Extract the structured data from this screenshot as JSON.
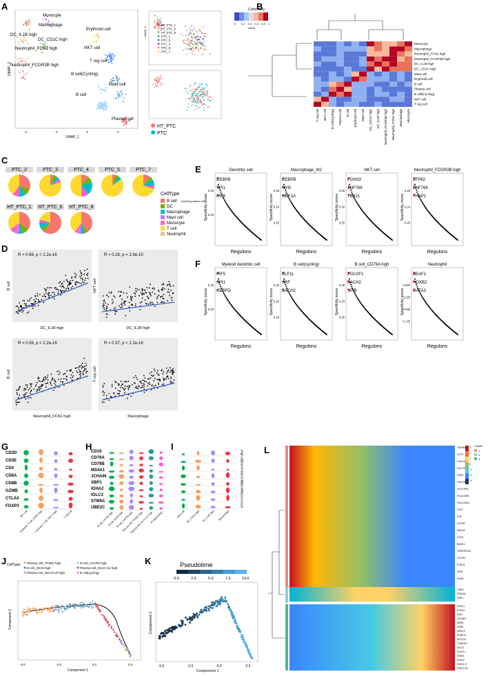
{
  "panels": [
    "A",
    "B",
    "C",
    "D",
    "E",
    "F",
    "G",
    "H",
    "I",
    "J",
    "K",
    "L"
  ],
  "panelA": {
    "clusters": [
      "Monocyte",
      "Macrophage",
      "DC_IL1B high",
      "DC_CD1C high",
      "Neutrophil_FCN1 high",
      "Neutrophil_FCGR3B high",
      "Erythroid cell",
      "NKT cell",
      "T reg cell",
      "B cell(Cycling)",
      "Mast cell",
      "B cell",
      "Plasma cell"
    ],
    "xlabel": "UMAP_1",
    "ylabel": "UMAP_2",
    "samples": [
      "HT_PTC_1",
      "HT_PTC_6",
      "HT_PTC_8",
      "PTC_2",
      "PTC_3",
      "PTC_4",
      "PTC_5",
      "PTC_7"
    ],
    "groups": [
      "HT_PTC",
      "PTC"
    ]
  },
  "panelB": {
    "colorkey_title": "Color Key",
    "colorkey_ticks": [
      "0",
      "0.2",
      "0.4",
      "0.6",
      "0.8",
      "1"
    ],
    "colorkey_label": "Value",
    "rows": [
      "Monocyte",
      "Macrophage",
      "Neutrophil_FCN1 high",
      "Neutrophil_FCGR3B high",
      "DC_IL1B high",
      "DC_CD1C high",
      "Mast cell",
      "Erythroid cell",
      "B cell",
      "Plasma cell",
      "B cell(Cycling)",
      "NKT cell",
      "T reg cell"
    ],
    "cols": [
      "T reg cell",
      "NKT cell",
      "B cell(Cycling)",
      "Plasma cell",
      "B cell",
      "Erythroid cell",
      "Mast cell",
      "DC_CD1C high",
      "DC_IL1B high",
      "Neutrophil_FCGR3B high",
      "Neutrophil_FCN1 high",
      "Macrophage",
      "Monocyte"
    ]
  },
  "panelC": {
    "samples": [
      "PTC_2",
      "PTC_3",
      "PTC_4",
      "PTC_5",
      "PTC_7",
      "HT_PTC_1",
      "HT_PTC_6",
      "HT_PTC_8"
    ],
    "legend_title": "CellType",
    "legend": [
      "B cell",
      "DC",
      "Macrophage",
      "Mast cell",
      "Monocyte",
      "T cell",
      "Neutrophil"
    ],
    "legend_note": "(including plasma cell)"
  },
  "panelD": {
    "plots": [
      {
        "stat": "R = 0.66, p < 2.2e-16",
        "x": "DC_IL1B high",
        "y": "B cell"
      },
      {
        "stat": "R = 0.26, p = 2.9e-10",
        "x": "DC_IL1B high",
        "y": "NKT cell"
      },
      {
        "stat": "R = 0.56, p < 2.2e-16",
        "x": "Neutrophil_FCN1 high",
        "y": "B cell"
      },
      {
        "stat": "R = 0.37, p < 2.2e-16",
        "x": "Macrophage",
        "y": "T reg cell"
      }
    ]
  },
  "panelE": {
    "ylabel": "Specificity score",
    "xlabel": "Regulons",
    "plots": [
      {
        "title": "Dendritic cell",
        "labels": [
          "CEBPB",
          "SPI1",
          "IRF8"
        ],
        "yticks": [
          "0.25",
          "0.20"
        ]
      },
      {
        "title": "Macrophage_M2",
        "labels": [
          "CEBPB",
          "MYB",
          "MEF2A"
        ],
        "yticks": [
          "0.28",
          "0.24",
          "0.20"
        ]
      },
      {
        "title": "NKT cell",
        "labels": [
          "FOXN3",
          "ZNF768",
          "TBX21"
        ],
        "yticks": [
          "0.35",
          "0.30",
          "0.25"
        ]
      },
      {
        "title": "Neutrophil_FCGR3B high",
        "labels": [
          "ZFP62",
          "ZNF768",
          "THAP1"
        ],
        "yticks": [
          "0.28",
          "0.24",
          "0.20"
        ]
      }
    ]
  },
  "panelF": {
    "ylabel": "Specificity score",
    "xlabel": "Regulons",
    "plots": [
      {
        "title": "Myeloid dendritic cell",
        "labels": [
          "IRF5",
          "SPI1",
          "CEBPD"
        ],
        "yticks": [
          "0.25",
          "0.20"
        ]
      },
      {
        "title": "B cell(cycling)",
        "labels": [
          "KLF11",
          "SRF",
          "BACH2"
        ],
        "yticks": [
          "0.22",
          "0.20",
          "0.18"
        ]
      },
      {
        "title": "B cell_CD79A high",
        "labels": [
          "POU2F1",
          "BACH2",
          "SPIB"
        ],
        "yticks": [
          "0.28",
          "0.24",
          "0.20"
        ]
      },
      {
        "title": "Neutrophil",
        "labels": [
          "BEAF1",
          "HOXB2",
          "GATA3"
        ],
        "yticks": [
          "0.250",
          "0.225",
          "0.200",
          "0.175"
        ]
      }
    ]
  },
  "panelG": {
    "genes": [
      "CD3D",
      "CD3E",
      "CD4",
      "CD8A",
      "CD8B",
      "GZMB",
      "CTLA4",
      "FOXP3"
    ],
    "cells": [
      "NKT cell",
      "Cytotoxic T cell_GZMK high",
      "Cytotoxic T cell_NKG7 high",
      "T reg cell"
    ]
  },
  "panelH": {
    "genes": [
      "CD19",
      "CD79A",
      "CD79B",
      "MS4A1",
      "JCHAIN",
      "XBP1",
      "IGHA2",
      "IGLC3",
      "STMN1",
      "UBE2C"
    ],
    "cells": [
      "B cell_CD79A high",
      "B cell_IGHD high",
      "B cell_CXCR5 high",
      "Plasma cell_TPSB2 high",
      "Plasma cell_IGLV1-51 high",
      "B cell(cycling)"
    ]
  },
  "panelI": {
    "genes": [
      "TNF",
      "CSF1R",
      "MARCO",
      "CD86",
      "CD1C",
      "CLEC10A",
      "FCER1A",
      "SPP1"
    ],
    "cells": [
      "Mast cell",
      "DC_CD1C high",
      "DC_IL1B high",
      "Macrophage"
    ]
  },
  "panelJ": {
    "legend_title": "CellType",
    "legend": [
      "Plasma cell_TPSB2 high",
      "B cell_CXCR5 high",
      "B cell_IGHD high",
      "Plasma cell_IGLV1-51 high",
      "Plasma cell_IGKV3-20 high",
      "B cell(cycling)"
    ],
    "xlabel": "Component 1",
    "ylabel": "Component 2",
    "xticks": [
      "-5.0",
      "-2.5",
      "0.0",
      "2.5"
    ]
  },
  "panelK": {
    "legend_title": "Pseudotime",
    "ticks": [
      "0.0",
      "2.5",
      "5.0",
      "7.5",
      "10.0"
    ],
    "xlabel": "Component 1",
    "ylabel": "Component 2",
    "xticks": [
      "-5.0",
      "-2.5",
      "0.0",
      "2.5"
    ]
  },
  "panelL": {
    "cluster_legend_title": "Cluster",
    "clusters": [
      "1",
      "2",
      "3"
    ],
    "scale": [
      "3",
      "2",
      "1",
      "0",
      "-1",
      "-2",
      "-3"
    ],
    "genes_top": [
      "TMSB4X",
      "CD74",
      "HLA-DRA",
      "HLA-DRB1",
      "CD52",
      "HLA-DPB1",
      "HLA-DPA1",
      "HLA-DQB1",
      "HLA-DQA1",
      "CD37",
      "LTB",
      "CD79B",
      "MS4A1",
      "CD19",
      "BANK1",
      "TNFRSF13C",
      "CXCR4",
      "FCRL5",
      "IGHD",
      "IGHM"
    ],
    "genes_mid": [
      "ITM2C",
      "PRDM1",
      "XBP1"
    ],
    "genes_bottom": [
      "IGHG1",
      "IGHG3",
      "IGKC",
      "JCHAIN",
      "MZB1",
      "SSR4",
      "DERL3",
      "FKBP11",
      "SEC11C",
      "TXNDC5",
      "IGLC2",
      "IGLV3-1",
      "IGHA1",
      "IGHA2",
      "IGKV1-5",
      "IGKV3-20"
    ]
  }
}
